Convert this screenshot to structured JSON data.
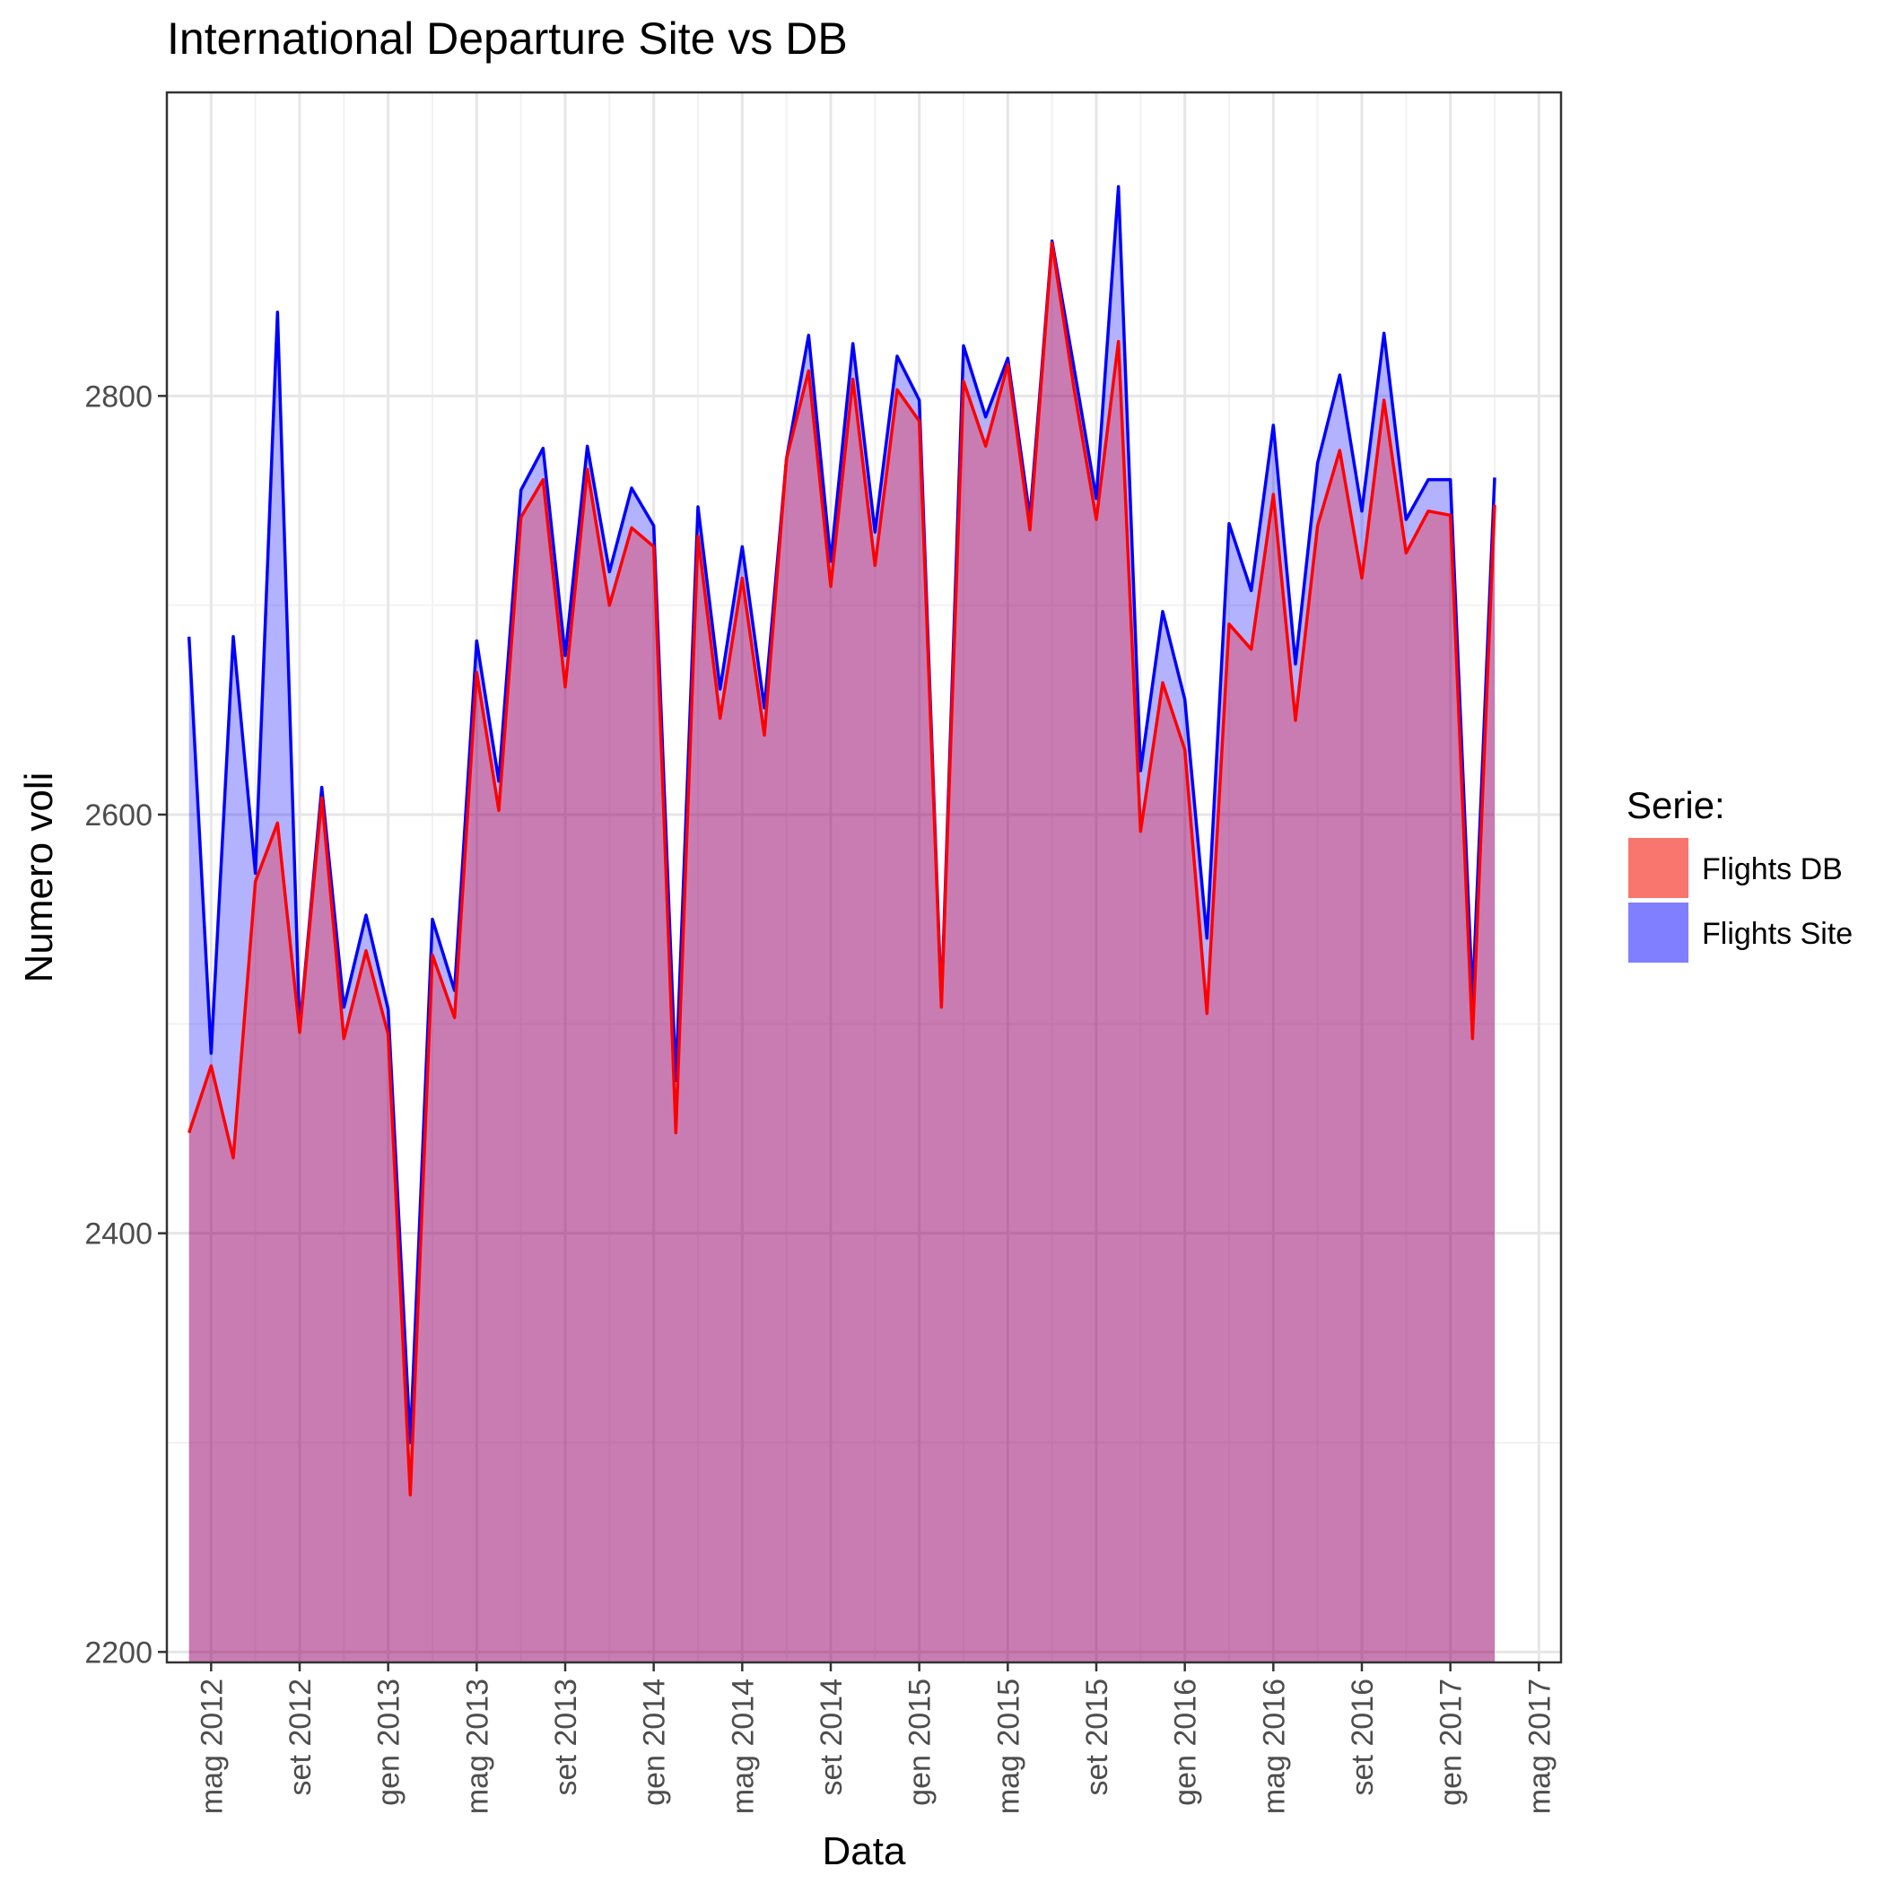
{
  "chart_data": {
    "type": "area",
    "title": "International Departure Site vs DB",
    "xlabel": "Data",
    "ylabel": "Numero voli",
    "x_axis": {
      "type": "date",
      "range": [
        "2012-03",
        "2017-06"
      ],
      "ticks": [
        {
          "date": "2012-05",
          "label": "mag 2012"
        },
        {
          "date": "2012-09",
          "label": "set 2012"
        },
        {
          "date": "2013-01",
          "label": "gen 2013"
        },
        {
          "date": "2013-05",
          "label": "mag 2013"
        },
        {
          "date": "2013-09",
          "label": "set 2013"
        },
        {
          "date": "2014-01",
          "label": "gen 2014"
        },
        {
          "date": "2014-05",
          "label": "mag 2014"
        },
        {
          "date": "2014-09",
          "label": "set 2014"
        },
        {
          "date": "2015-01",
          "label": "gen 2015"
        },
        {
          "date": "2015-05",
          "label": "mag 2015"
        },
        {
          "date": "2015-09",
          "label": "set 2015"
        },
        {
          "date": "2016-01",
          "label": "gen 2016"
        },
        {
          "date": "2016-05",
          "label": "mag 2016"
        },
        {
          "date": "2016-09",
          "label": "set 2016"
        },
        {
          "date": "2017-01",
          "label": "gen 2017"
        },
        {
          "date": "2017-05",
          "label": "mag 2017"
        }
      ]
    },
    "y_axis": {
      "ticks": [
        2200,
        2400,
        2600,
        2800
      ],
      "ylim": [
        2195,
        2945
      ]
    },
    "grid": true,
    "legend": {
      "title": "Serie:",
      "position": "right",
      "entries": [
        {
          "label": "Flights DB",
          "color": "#F8766D"
        },
        {
          "label": "Flights Site",
          "color": "#7F7FFF"
        }
      ]
    },
    "x": [
      "2012-04",
      "2012-05",
      "2012-06",
      "2012-07",
      "2012-08",
      "2012-09",
      "2012-10",
      "2012-11",
      "2012-12",
      "2013-01",
      "2013-02",
      "2013-03",
      "2013-04",
      "2013-05",
      "2013-06",
      "2013-07",
      "2013-08",
      "2013-09",
      "2013-10",
      "2013-11",
      "2013-12",
      "2014-01",
      "2014-02",
      "2014-03",
      "2014-04",
      "2014-05",
      "2014-06",
      "2014-07",
      "2014-08",
      "2014-09",
      "2014-10",
      "2014-11",
      "2014-12",
      "2015-01",
      "2015-02",
      "2015-03",
      "2015-04",
      "2015-05",
      "2015-06",
      "2015-07",
      "2015-08",
      "2015-09",
      "2015-10",
      "2015-11",
      "2015-12",
      "2016-01",
      "2016-02",
      "2016-03",
      "2016-04",
      "2016-05",
      "2016-06",
      "2016-07",
      "2016-08",
      "2016-09",
      "2016-10",
      "2016-11",
      "2016-12",
      "2017-01",
      "2017-02",
      "2017-03"
    ],
    "series": [
      {
        "name": "Flights DB",
        "line_color": "#FF0000",
        "fill_color": "#FF0000",
        "values": [
          2448,
          2480,
          2436,
          2568,
          2596,
          2496,
          2608,
          2493,
          2535,
          2495,
          2275,
          2533,
          2503,
          2668,
          2602,
          2742,
          2760,
          2661,
          2765,
          2700,
          2737,
          2728,
          2448,
          2733,
          2646,
          2713,
          2638,
          2770,
          2812,
          2709,
          2808,
          2719,
          2803,
          2788,
          2508,
          2807,
          2776,
          2815,
          2736,
          2873,
          2803,
          2741,
          2826,
          2592,
          2663,
          2631,
          2505,
          2691,
          2679,
          2753,
          2645,
          2738,
          2774,
          2713,
          2798,
          2725,
          2745,
          2743,
          2493,
          2748
        ]
      },
      {
        "name": "Flights Site",
        "line_color": "#0000FF",
        "fill_color": "#0000FF",
        "values": [
          2685,
          2486,
          2685,
          2572,
          2840,
          2497,
          2613,
          2508,
          2552,
          2507,
          2300,
          2550,
          2516,
          2683,
          2616,
          2755,
          2775,
          2676,
          2776,
          2716,
          2756,
          2738,
          2473,
          2747,
          2660,
          2728,
          2651,
          2770,
          2829,
          2721,
          2825,
          2735,
          2819,
          2798,
          2510,
          2824,
          2790,
          2818,
          2742,
          2874,
          2813,
          2751,
          2900,
          2621,
          2697,
          2655,
          2541,
          2739,
          2707,
          2786,
          2672,
          2768,
          2810,
          2745,
          2830,
          2741,
          2760,
          2760,
          2512,
          2761
        ]
      }
    ]
  }
}
